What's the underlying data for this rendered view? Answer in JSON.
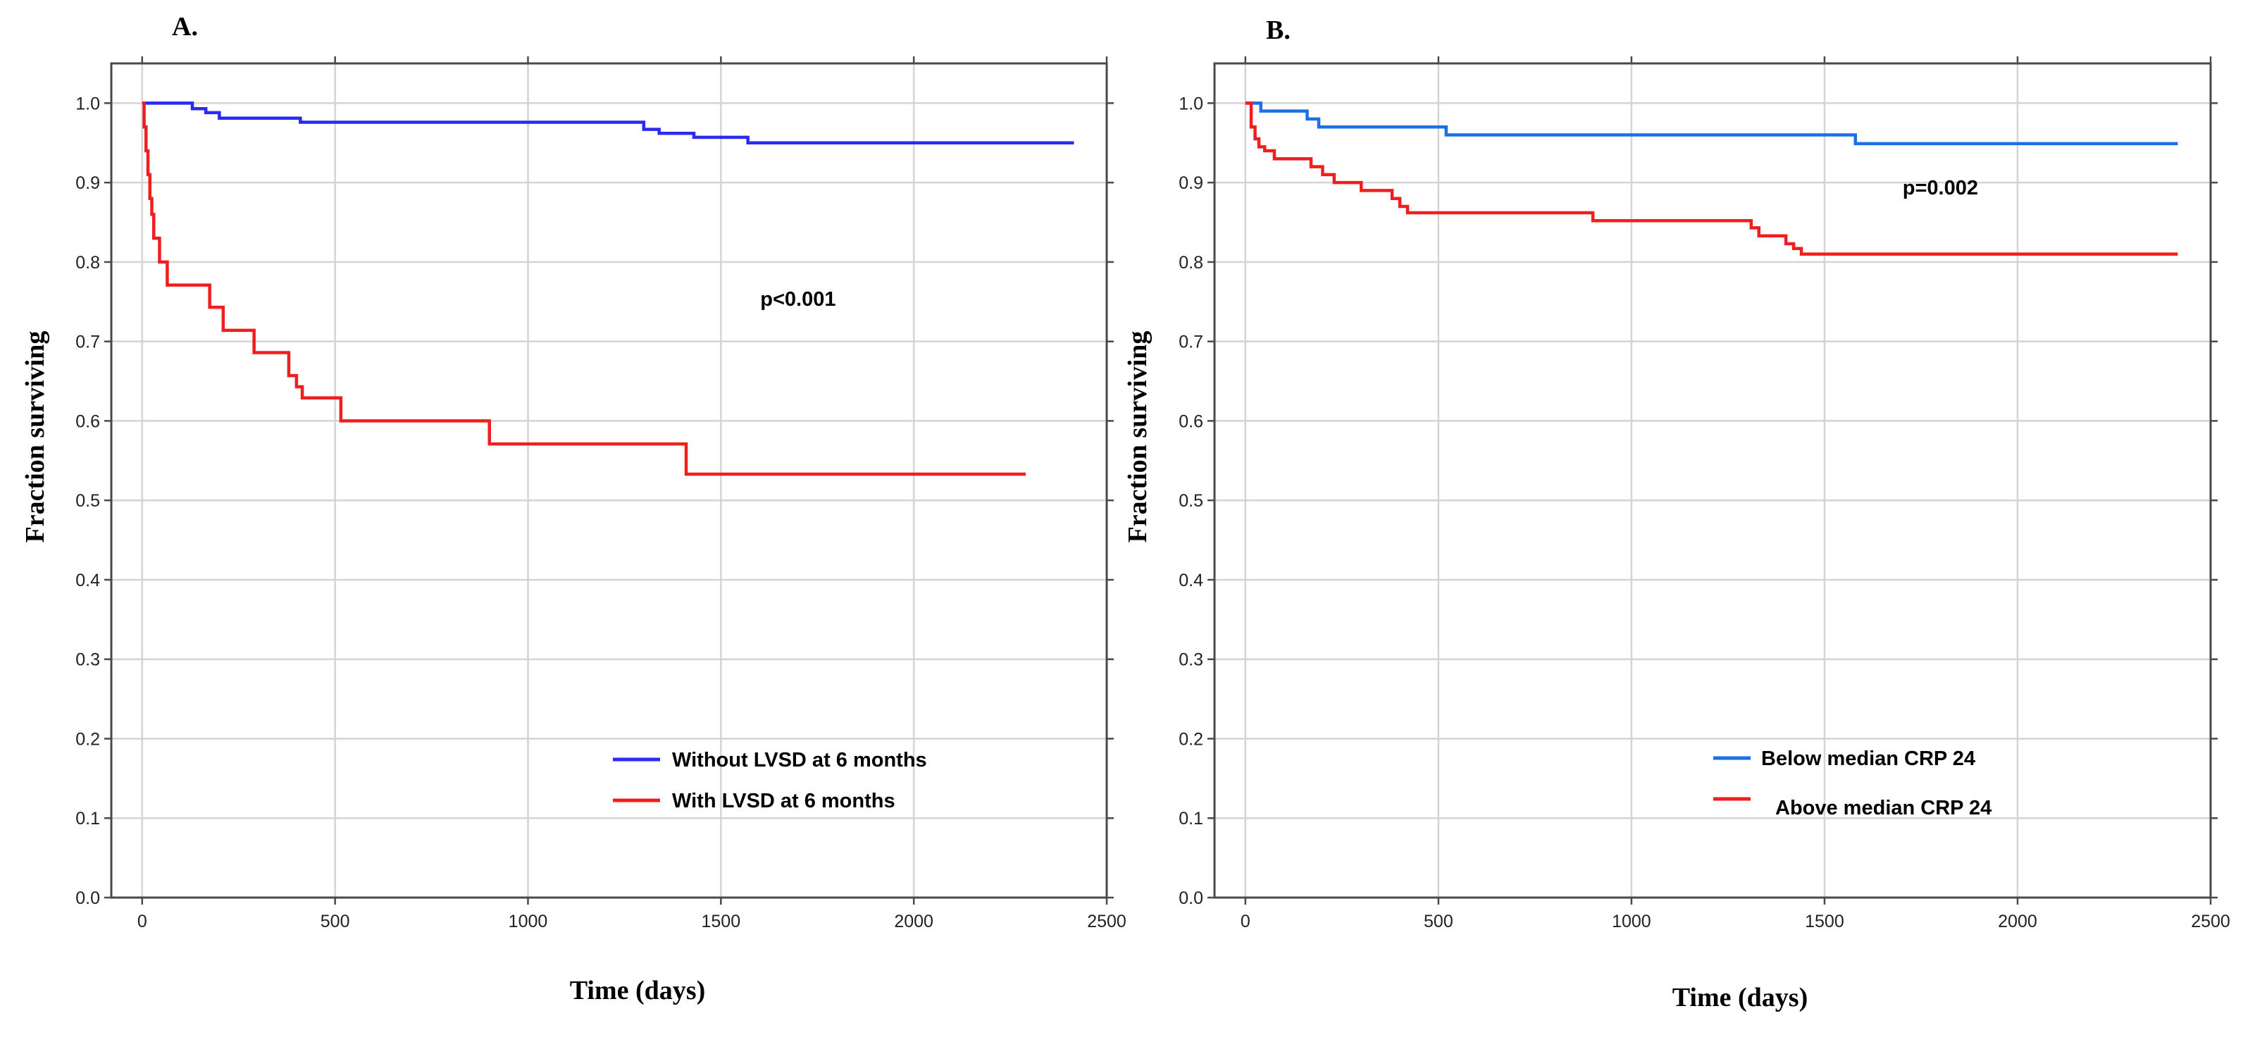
{
  "chart_data": [
    {
      "panel": "A.",
      "type": "line",
      "subtype": "kaplan-meier step",
      "xlabel": "Time (days)",
      "ylabel": "Fraction surviving",
      "xlim": [
        -80,
        2500
      ],
      "ylim": [
        0.0,
        1.05
      ],
      "xticks": [
        0,
        500,
        1000,
        1500,
        2000,
        2500
      ],
      "yticks": [
        0.0,
        0.1,
        0.2,
        0.3,
        0.4,
        0.5,
        0.6,
        0.7,
        0.8,
        0.9,
        1.0
      ],
      "ytick_labels": [
        "0.0",
        "0.1",
        "0.2",
        "0.3",
        "0.4",
        "0.5",
        "0.6",
        "0.7",
        "0.8",
        "0.9",
        "1.0"
      ],
      "annotation": {
        "text": "p<0.001",
        "x": 1700,
        "y": 0.745
      },
      "legend": {
        "position": "bottom-right"
      },
      "series": [
        {
          "name": "Without LVSD at 6 months",
          "color": "#2a2af0",
          "x": [
            0,
            130,
            165,
            200,
            300,
            410,
            600,
            1000,
            1300,
            1340,
            1430,
            1500,
            1570,
            2000,
            2415
          ],
          "y": [
            1.0,
            0.993,
            0.988,
            0.981,
            0.981,
            0.976,
            0.976,
            0.976,
            0.967,
            0.962,
            0.957,
            0.957,
            0.95,
            0.95,
            0.95
          ]
        },
        {
          "name": "With LVSD at 6 months",
          "color": "#f01e1e",
          "x": [
            0,
            5,
            10,
            15,
            20,
            25,
            30,
            45,
            65,
            175,
            190,
            210,
            290,
            380,
            400,
            415,
            515,
            900,
            1410,
            2290
          ],
          "y": [
            1.0,
            0.97,
            0.94,
            0.91,
            0.88,
            0.86,
            0.83,
            0.8,
            0.771,
            0.743,
            0.743,
            0.714,
            0.686,
            0.657,
            0.643,
            0.629,
            0.6,
            0.571,
            0.533,
            0.533
          ]
        }
      ]
    },
    {
      "panel": "B.",
      "type": "line",
      "subtype": "kaplan-meier step",
      "xlabel": "Time (days)",
      "ylabel": "Fraction surviving",
      "xlim": [
        -80,
        2500
      ],
      "ylim": [
        0.0,
        1.05
      ],
      "xticks": [
        0,
        500,
        1000,
        1500,
        2000,
        2500
      ],
      "yticks": [
        0.0,
        0.1,
        0.2,
        0.3,
        0.4,
        0.5,
        0.6,
        0.7,
        0.8,
        0.9,
        1.0
      ],
      "ytick_labels": [
        "0.0",
        "0.1",
        "0.2",
        "0.3",
        "0.4",
        "0.5",
        "0.6",
        "0.7",
        "0.8",
        "0.9",
        "1.0"
      ],
      "annotation": {
        "text": "p=0.002",
        "x": 1800,
        "y": 0.885
      },
      "legend": {
        "position": "bottom-right"
      },
      "series": [
        {
          "name": "Below   median CRP 24",
          "color": "#1e6ee6",
          "x": [
            0,
            20,
            40,
            160,
            190,
            520,
            1000,
            1580,
            2415
          ],
          "y": [
            1.0,
            1.0,
            0.99,
            0.98,
            0.97,
            0.96,
            0.96,
            0.949,
            0.949
          ],
          "legend_offset": [
            0,
            0
          ]
        },
        {
          "name": "Above median CRP 24",
          "color": "#f01e1e",
          "x": [
            0,
            15,
            25,
            35,
            50,
            75,
            170,
            200,
            230,
            300,
            380,
            400,
            420,
            900,
            1310,
            1330,
            1350,
            1400,
            1420,
            1440,
            2415
          ],
          "y": [
            1.0,
            0.97,
            0.955,
            0.945,
            0.94,
            0.93,
            0.92,
            0.91,
            0.9,
            0.89,
            0.88,
            0.87,
            0.862,
            0.852,
            0.843,
            0.833,
            0.833,
            0.823,
            0.817,
            0.81,
            0.81
          ],
          "legend_offset": [
            20,
            12
          ]
        }
      ]
    }
  ]
}
